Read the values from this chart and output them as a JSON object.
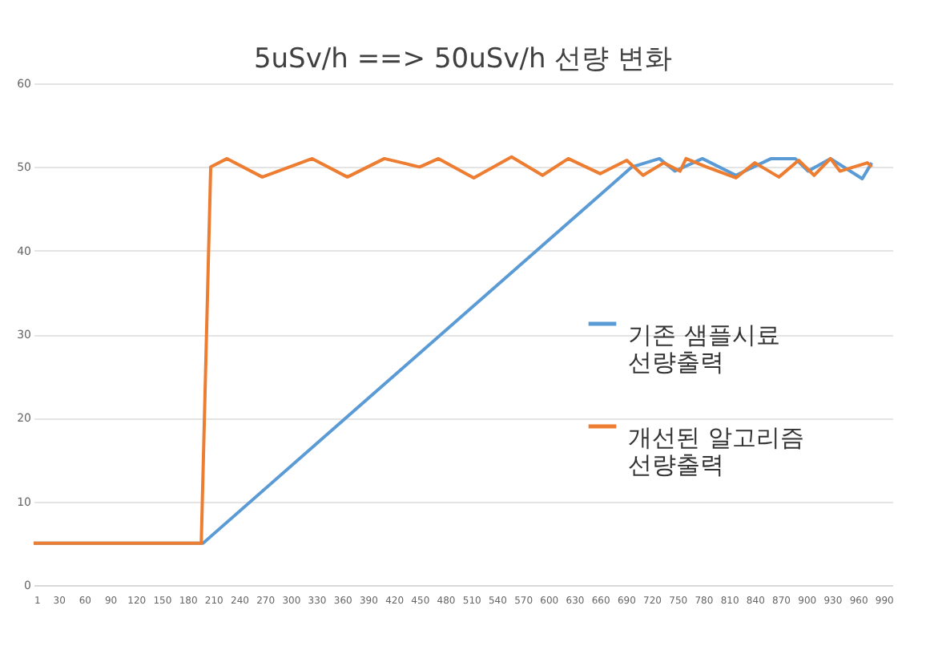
{
  "chart_data": {
    "type": "line",
    "title": "5uSv/h  ==> 50uSv/h 선량 변화",
    "xlim": [
      1,
      1000
    ],
    "xticks": [
      1,
      30,
      60,
      90,
      120,
      150,
      180,
      210,
      240,
      270,
      300,
      330,
      360,
      390,
      420,
      450,
      480,
      510,
      540,
      570,
      600,
      630,
      660,
      690,
      720,
      750,
      780,
      810,
      840,
      870,
      900,
      930,
      960,
      990
    ],
    "ylim": [
      0,
      60
    ],
    "yticks": [
      0,
      10,
      20,
      30,
      40,
      50,
      60
    ],
    "grid": "y",
    "legend": "right",
    "line_style": "solid",
    "marker": "none",
    "series": [
      {
        "name": "기존 샘플시료 선량출력",
        "color": "#5b9bd5",
        "x": [
          1,
          198,
          697,
          729,
          747,
          779,
          818,
          859,
          887,
          902,
          928,
          965,
          976
        ],
        "values": [
          5,
          5,
          50,
          51,
          49.5,
          51,
          49,
          51,
          51,
          49.5,
          51,
          48.6,
          50.5
        ]
      },
      {
        "name": "개선된 알고리즘 선량출력",
        "color": "#ed7d31",
        "x": [
          1,
          196,
          207,
          226,
          267,
          325,
          366,
          409,
          450,
          472,
          513,
          557,
          593,
          623,
          660,
          691,
          710,
          734,
          753,
          760,
          784,
          818,
          840,
          868,
          891,
          909,
          928,
          939,
          971,
          976
        ],
        "values": [
          5,
          5,
          50,
          51,
          48.8,
          51,
          48.8,
          51,
          50,
          51,
          48.7,
          51.2,
          49,
          51,
          49.2,
          50.8,
          49,
          50.5,
          49.5,
          51,
          50,
          48.7,
          50.5,
          48.8,
          50.8,
          49,
          51,
          49.5,
          50.5,
          50
        ]
      }
    ]
  }
}
